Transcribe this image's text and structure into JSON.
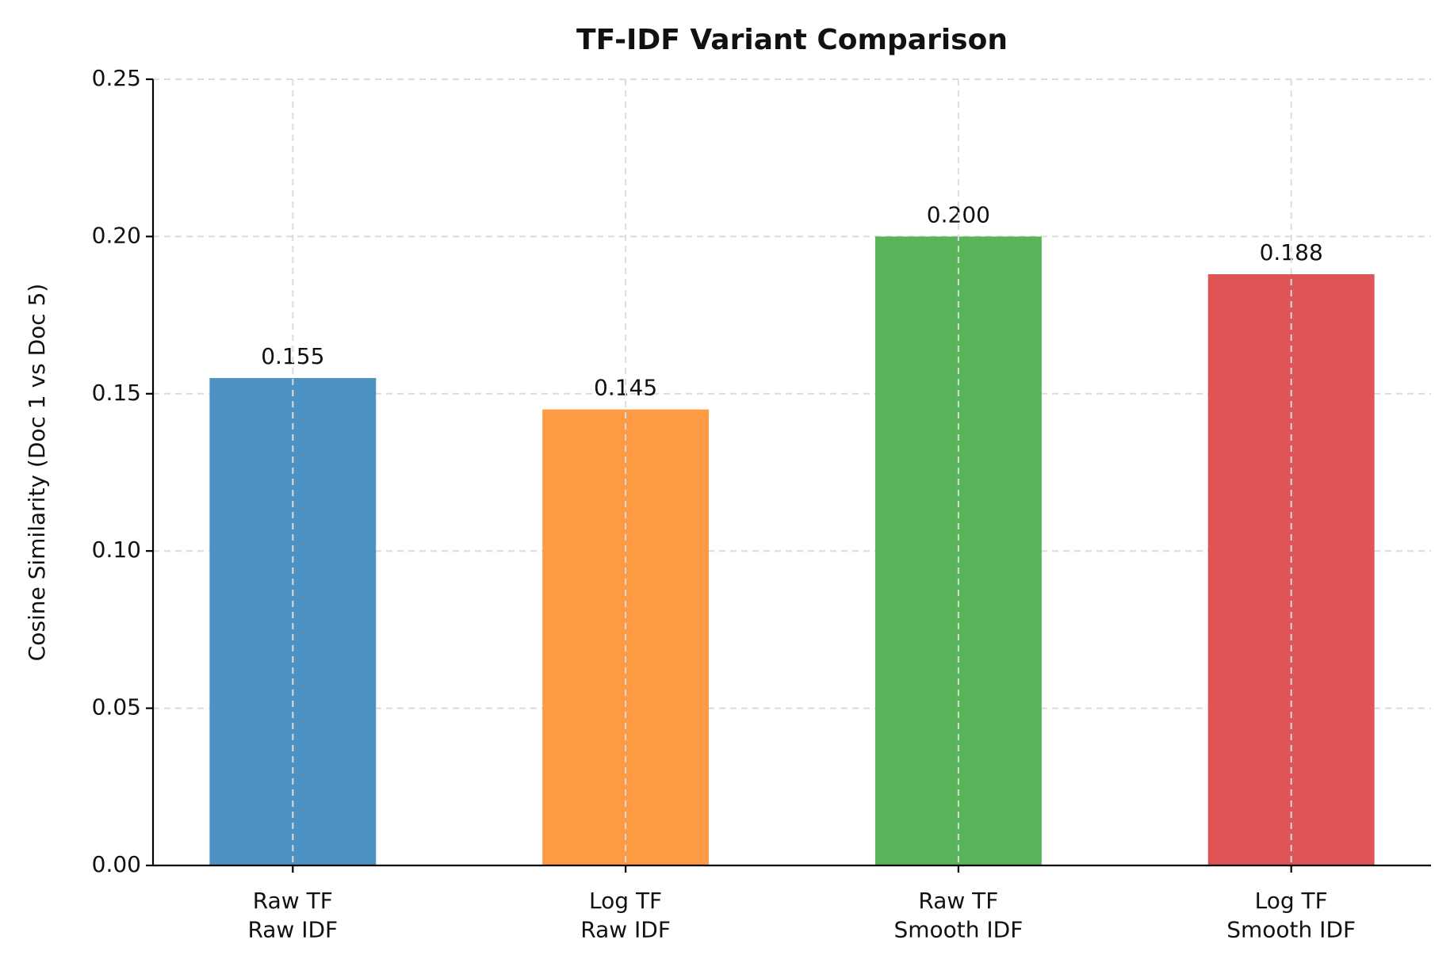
{
  "chart_data": {
    "type": "bar",
    "title": "TF-IDF Variant Comparison",
    "y_label": "Cosine Similarity (Doc 1 vs Doc 5)",
    "categories": [
      "Raw TF\nRaw IDF",
      "Log TF\nRaw IDF",
      "Raw TF\nSmooth IDF",
      "Log TF\nSmooth IDF"
    ],
    "values": [
      0.155,
      0.145,
      0.2,
      0.188
    ],
    "value_labels": [
      "0.155",
      "0.145",
      "0.200",
      "0.188"
    ],
    "colors": [
      "#4e92c4",
      "#fe9a43",
      "#59b358",
      "#df5456"
    ],
    "ylim": [
      0,
      0.25
    ],
    "yticks": [
      {
        "value": 0,
        "label": "0.00"
      },
      {
        "value": 0.05,
        "label": "0.05"
      },
      {
        "value": 0.1,
        "label": "0.10"
      },
      {
        "value": 0.15,
        "label": "0.15"
      },
      {
        "value": 0.2,
        "label": "0.20"
      },
      {
        "value": 0.25,
        "label": "0.25"
      }
    ],
    "grid": true
  }
}
